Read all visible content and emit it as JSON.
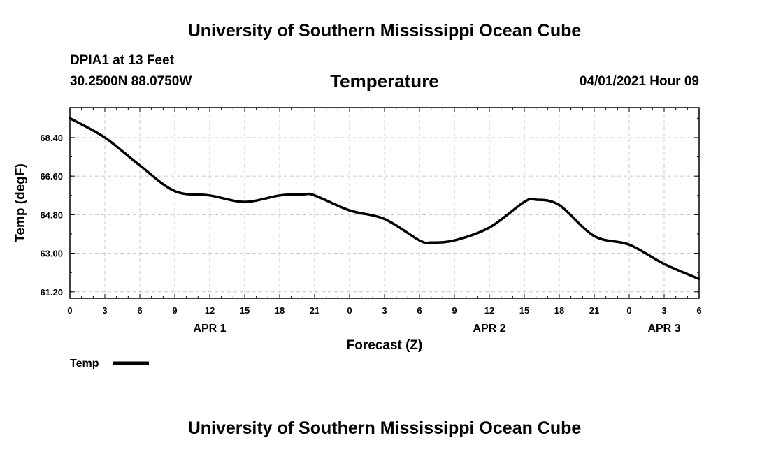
{
  "header": {
    "title_top": "University of Southern Mississippi Ocean Cube",
    "station": "DPIA1 at 13 Feet",
    "coords": "30.2500N  88.0750W",
    "timestamp": "04/01/2021 Hour 09"
  },
  "footer": {
    "title_bottom": "University of Southern Mississippi Ocean Cube"
  },
  "chart_data": {
    "type": "line",
    "title": "Temperature",
    "xlabel": "Forecast (Z)",
    "ylabel": "Temp (degF)",
    "ylim": [
      60.9,
      69.8
    ],
    "yticks": [
      61.2,
      63.0,
      64.8,
      66.6,
      68.4
    ],
    "ytick_labels": [
      "61.20",
      "63.00",
      "64.80",
      "66.60",
      "68.40"
    ],
    "xlim": [
      0,
      54
    ],
    "xticks": [
      0,
      3,
      6,
      9,
      12,
      15,
      18,
      21,
      24,
      27,
      30,
      33,
      36,
      39,
      42,
      45,
      48,
      51,
      54
    ],
    "xtick_labels": [
      "0",
      "3",
      "6",
      "9",
      "12",
      "15",
      "18",
      "21",
      "0",
      "3",
      "6",
      "9",
      "12",
      "15",
      "18",
      "21",
      "0",
      "3",
      "6"
    ],
    "date_labels": [
      {
        "x": 12,
        "label": "APR 1"
      },
      {
        "x": 36,
        "label": "APR 2"
      },
      {
        "x": 51,
        "label": "APR 3"
      }
    ],
    "grid": true,
    "series": [
      {
        "name": "Temp",
        "color": "#000000",
        "x": [
          0,
          3,
          6,
          9,
          12,
          15,
          18,
          20,
          21,
          24,
          27,
          30,
          31,
          33,
          36,
          39,
          40,
          42,
          45,
          48,
          51,
          54
        ],
        "values": [
          69.3,
          68.4,
          67.1,
          65.9,
          65.7,
          65.4,
          65.7,
          65.75,
          65.7,
          65.0,
          64.6,
          63.6,
          63.5,
          63.6,
          64.2,
          65.4,
          65.5,
          65.25,
          63.8,
          63.4,
          62.5,
          61.8
        ]
      }
    ],
    "legend": "bottom-left"
  }
}
